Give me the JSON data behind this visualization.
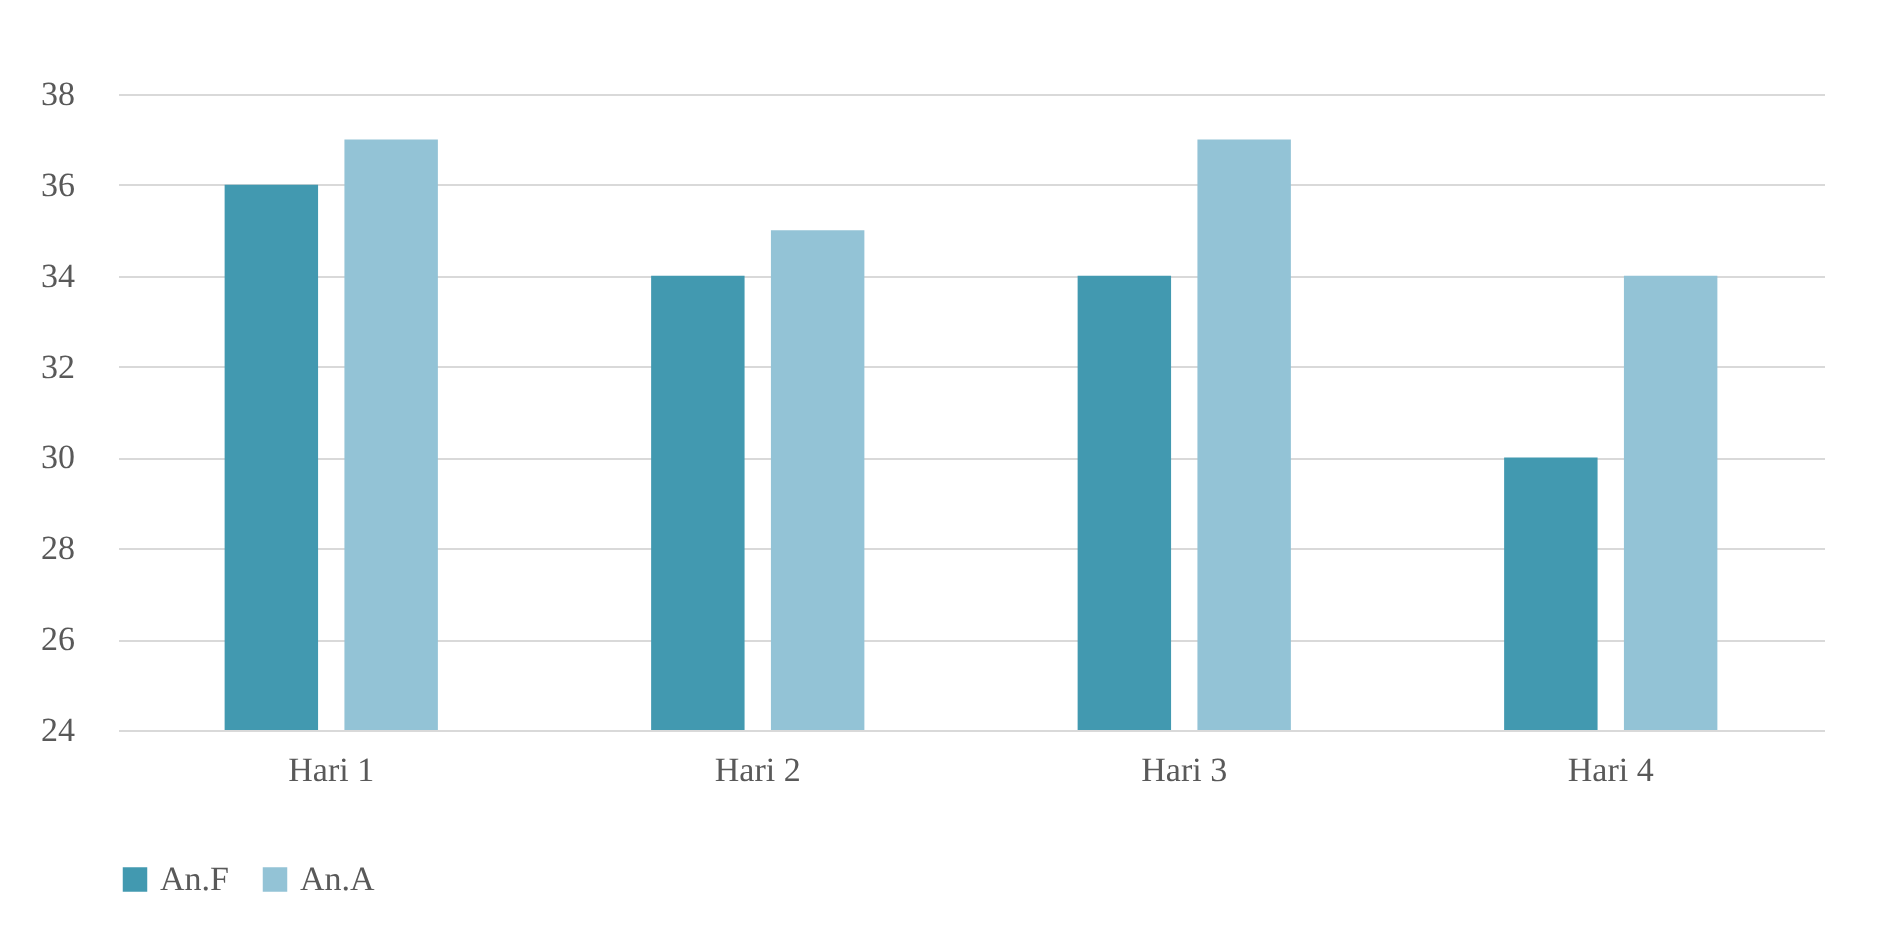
{
  "chart_data": {
    "type": "bar",
    "categories": [
      "Hari 1",
      "Hari 2",
      "Hari 3",
      "Hari 4"
    ],
    "series": [
      {
        "name": "An.F",
        "color": "#4299b0",
        "values": [
          36,
          34,
          34,
          30
        ]
      },
      {
        "name": "An.A",
        "color": "#93c3d6",
        "values": [
          37,
          35,
          37,
          34
        ]
      }
    ],
    "ylim": [
      24,
      38
    ],
    "yticks": [
      24,
      26,
      28,
      30,
      32,
      34,
      36,
      38
    ],
    "grid": "y",
    "legend": "bottom"
  }
}
